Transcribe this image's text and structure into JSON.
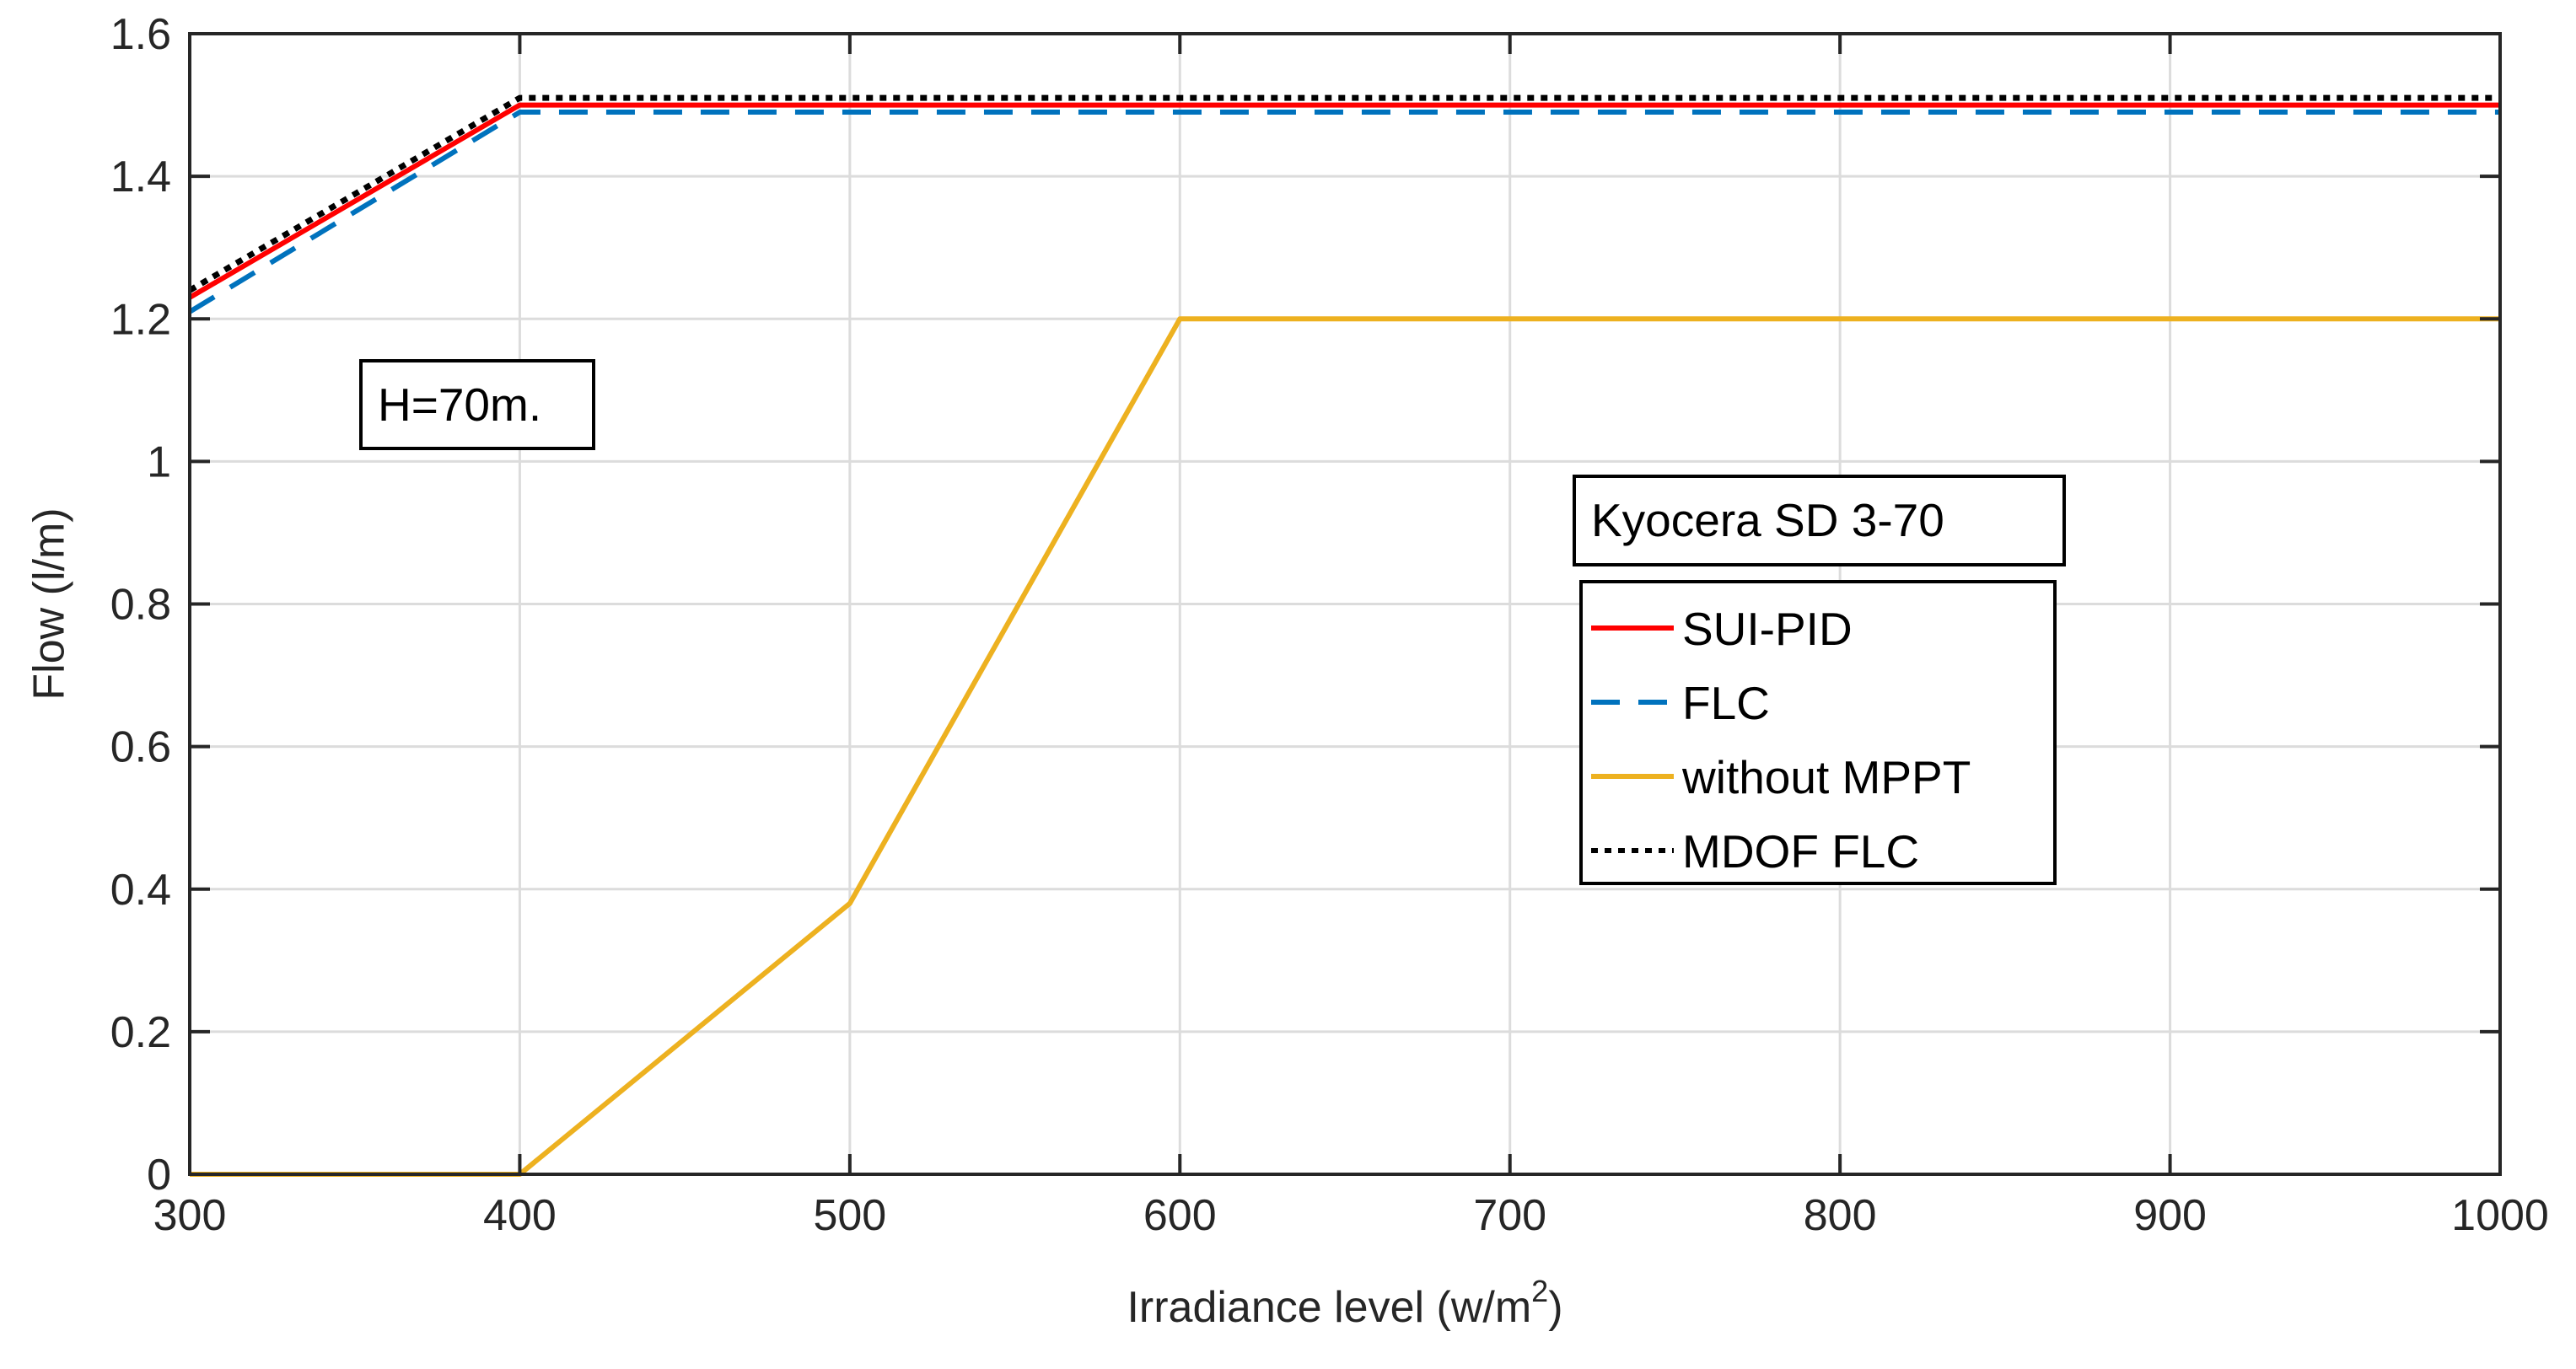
{
  "chart_data": {
    "type": "line",
    "title": "",
    "xlabel": "Irradiance level (w/m",
    "xlabel_sup": "2",
    "xlabel_close": ")",
    "ylabel": "Flow (l/m)",
    "xlim": [
      300,
      1000
    ],
    "ylim": [
      0,
      1.6
    ],
    "grid": true,
    "xticks": [
      300,
      400,
      500,
      600,
      700,
      800,
      900,
      1000
    ],
    "xtick_labels": [
      "300",
      "400",
      "500",
      "600",
      "700",
      "800",
      "900",
      "1000"
    ],
    "yticks": [
      0,
      0.2,
      0.4,
      0.6,
      0.8,
      1.0,
      1.2,
      1.4,
      1.6
    ],
    "ytick_labels": [
      "0",
      "0.2",
      "0.4",
      "0.6",
      "0.8",
      "1",
      "1.2",
      "1.4",
      "1.6"
    ],
    "x": [
      300,
      400,
      500,
      600,
      700,
      800,
      900,
      1000
    ],
    "series": [
      {
        "name": "SUI-PID",
        "color": "#ff0000",
        "dash": "solid",
        "values": [
          1.23,
          1.5,
          1.5,
          1.5,
          1.5,
          1.5,
          1.5,
          1.5
        ]
      },
      {
        "name": "FLC",
        "color": "#0072bd",
        "dash": "dashed",
        "values": [
          1.21,
          1.49,
          1.49,
          1.49,
          1.49,
          1.49,
          1.49,
          1.49
        ]
      },
      {
        "name": "without MPPT",
        "color": "#edb120",
        "dash": "solid",
        "values": [
          0,
          0,
          0.38,
          1.2,
          1.2,
          1.2,
          1.2,
          1.2
        ]
      },
      {
        "name": "MDOF FLC",
        "color": "#000000",
        "dash": "dotted",
        "values": [
          1.24,
          1.51,
          1.51,
          1.51,
          1.51,
          1.51,
          1.51,
          1.51
        ]
      }
    ],
    "legend_title": "Kyocera SD 3-70",
    "legend_position": "center-right",
    "annotations": [
      {
        "text": "H=70m.",
        "position": "upper-left"
      }
    ]
  }
}
